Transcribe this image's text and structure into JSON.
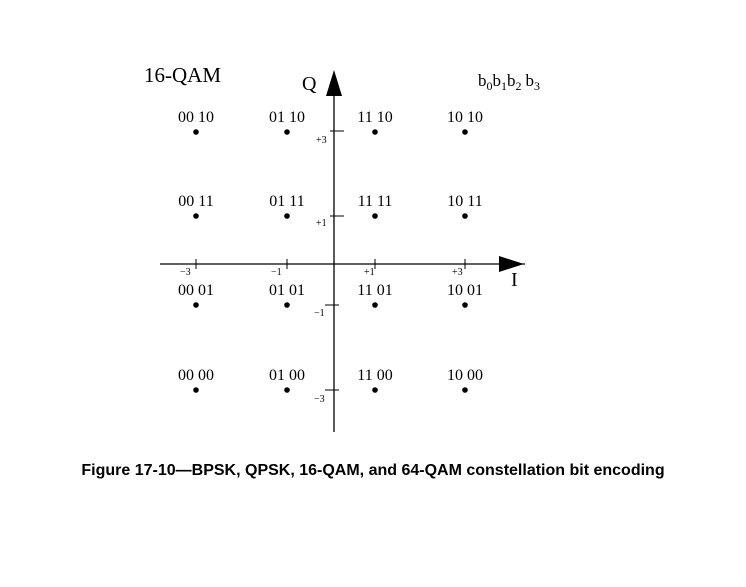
{
  "diagram": {
    "label": "16-QAM",
    "axis_q": "Q",
    "axis_i": "I",
    "bit_order": {
      "b": "b",
      "subs": [
        "0",
        "1",
        "2",
        "3"
      ]
    },
    "i_ticks": [
      "−3",
      "−1",
      "+1",
      "+3"
    ],
    "q_ticks": [
      "+3",
      "+1",
      "−1",
      "−3"
    ],
    "points": [
      {
        "i": -3,
        "q": 3,
        "bits": "00 10"
      },
      {
        "i": -1,
        "q": 3,
        "bits": "01 10"
      },
      {
        "i": 1,
        "q": 3,
        "bits": "11 10"
      },
      {
        "i": 3,
        "q": 3,
        "bits": "10 10"
      },
      {
        "i": -3,
        "q": 1,
        "bits": "00 11"
      },
      {
        "i": -1,
        "q": 1,
        "bits": "01 11"
      },
      {
        "i": 1,
        "q": 1,
        "bits": "11 11"
      },
      {
        "i": 3,
        "q": 1,
        "bits": "10 11"
      },
      {
        "i": -3,
        "q": -1,
        "bits": "00 01"
      },
      {
        "i": -1,
        "q": -1,
        "bits": "01 01"
      },
      {
        "i": 1,
        "q": -1,
        "bits": "11 01"
      },
      {
        "i": 3,
        "q": -1,
        "bits": "10 01"
      },
      {
        "i": -3,
        "q": -3,
        "bits": "00 00"
      },
      {
        "i": -1,
        "q": -3,
        "bits": "01 00"
      },
      {
        "i": 1,
        "q": -3,
        "bits": "11 00"
      },
      {
        "i": 3,
        "q": -3,
        "bits": "10 00"
      }
    ]
  },
  "caption": "Figure 17-10—BPSK, QPSK, 16-QAM, and 64-QAM constellation bit encoding"
}
